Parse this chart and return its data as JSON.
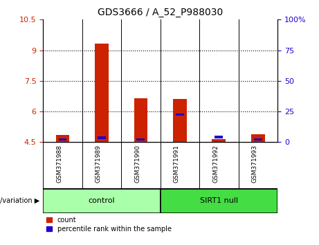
{
  "title": "GDS3666 / A_52_P988030",
  "samples": [
    "GSM371988",
    "GSM371989",
    "GSM371990",
    "GSM371991",
    "GSM371992",
    "GSM371993"
  ],
  "red_values": [
    4.85,
    9.32,
    6.65,
    6.62,
    4.65,
    4.87
  ],
  "blue_values": [
    4.63,
    4.72,
    4.63,
    5.85,
    4.75,
    4.63
  ],
  "y_min": 4.5,
  "y_max": 10.5,
  "y_ticks_left": [
    4.5,
    6.0,
    7.5,
    9.0,
    10.5
  ],
  "y_labels_left": [
    "4.5",
    "6",
    "7.5",
    "9",
    "10.5"
  ],
  "y_ticks_right": [
    4.5,
    6.0,
    7.5,
    9.0,
    10.5
  ],
  "y_labels_right": [
    "0",
    "25",
    "50",
    "75",
    "100%"
  ],
  "grid_yticks": [
    6.0,
    7.5,
    9.0
  ],
  "control_label": "control",
  "sirt1_label": "SIRT1 null",
  "genotype_label": "genotype/variation",
  "legend_red": "count",
  "legend_blue": "percentile rank within the sample",
  "bar_width": 0.35,
  "red_color": "#cc2200",
  "blue_color": "#2200cc",
  "control_color": "#aaffaa",
  "sirt1_color": "#44dd44",
  "plot_bg": "#ffffff",
  "label_bg": "#cccccc"
}
